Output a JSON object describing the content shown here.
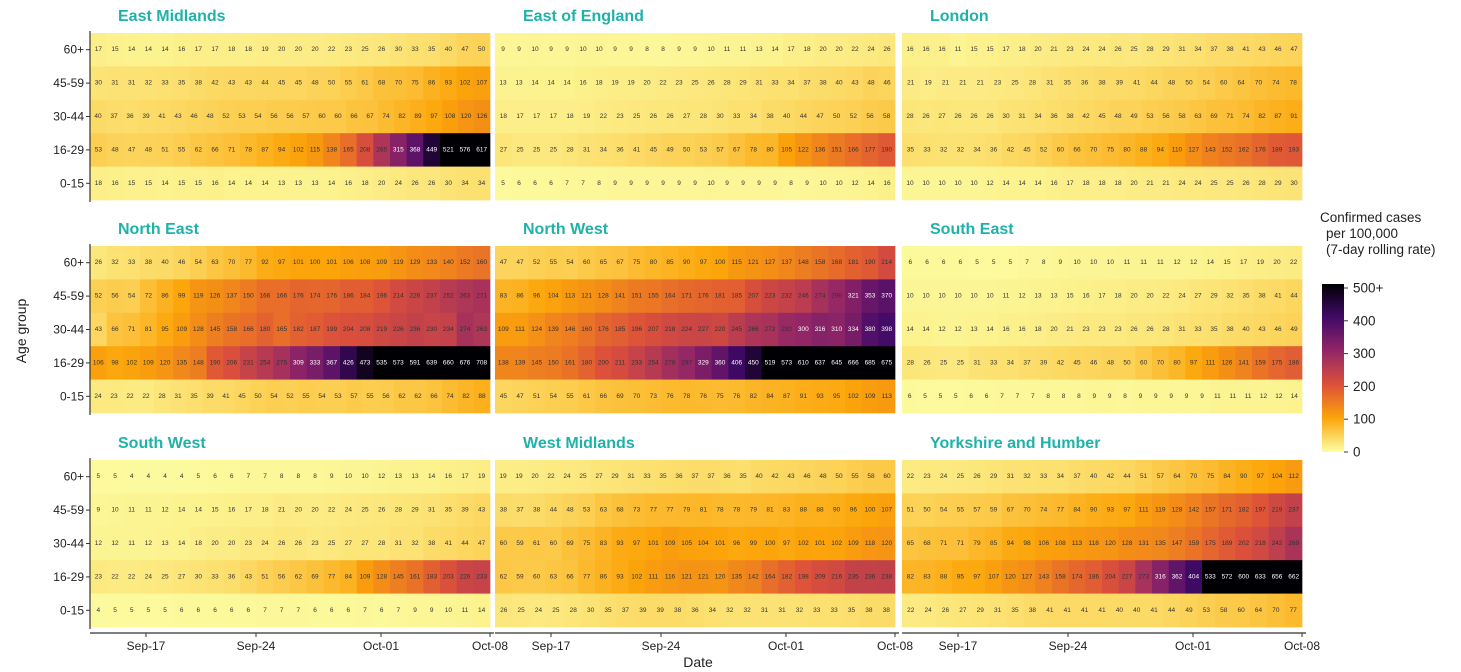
{
  "chart_data": {
    "type": "heatmap",
    "xlabel": "Date",
    "ylabel": "Age group",
    "age_groups": [
      "60+",
      "45-59",
      "30-44",
      "16-29",
      "0-15"
    ],
    "x_ticks": [
      "Sep-17",
      "Sep-24",
      "Oct-01",
      "Oct-08"
    ],
    "legend": {
      "title": [
        "Confirmed cases",
        "per 100,000",
        "(7-day rolling rate)"
      ],
      "labels": [
        "500+",
        "400",
        "300",
        "200",
        "100",
        "0"
      ]
    },
    "panels": [
      {
        "name": "East Midlands",
        "rows": [
          [
            17,
            15,
            14,
            14,
            14,
            16,
            17,
            17,
            18,
            18,
            19,
            20,
            20,
            20,
            22,
            23,
            25,
            26,
            30,
            33,
            35,
            40,
            47,
            50
          ],
          [
            30,
            31,
            31,
            32,
            33,
            35,
            38,
            42,
            43,
            43,
            44,
            45,
            45,
            48,
            50,
            55,
            61,
            68,
            70,
            75,
            86,
            93,
            102,
            107
          ],
          [
            40,
            37,
            36,
            39,
            41,
            43,
            46,
            48,
            52,
            53,
            54,
            56,
            56,
            57,
            60,
            60,
            66,
            67,
            74,
            82,
            89,
            97,
            108,
            120,
            126
          ],
          [
            53,
            48,
            47,
            48,
            51,
            55,
            62,
            66,
            71,
            78,
            87,
            94,
            102,
            115,
            138,
            165,
            208,
            265,
            315,
            368,
            449,
            521,
            576,
            617
          ],
          [
            18,
            16,
            15,
            15,
            14,
            15,
            15,
            16,
            14,
            14,
            14,
            13,
            13,
            13,
            14,
            16,
            18,
            20,
            24,
            26,
            26,
            30,
            34,
            34
          ]
        ]
      },
      {
        "name": "East of England",
        "rows": [
          [
            9,
            9,
            10,
            9,
            9,
            10,
            10,
            9,
            9,
            8,
            8,
            9,
            9,
            10,
            11,
            11,
            13,
            14,
            17,
            18,
            20,
            20,
            22,
            24,
            26
          ],
          [
            13,
            13,
            14,
            14,
            14,
            16,
            18,
            19,
            19,
            20,
            22,
            23,
            25,
            26,
            28,
            29,
            31,
            33,
            34,
            37,
            38,
            40,
            43,
            48,
            46
          ],
          [
            18,
            17,
            17,
            17,
            18,
            19,
            22,
            23,
            25,
            26,
            26,
            27,
            28,
            30,
            33,
            34,
            38,
            40,
            44,
            47,
            50,
            52,
            56,
            58
          ],
          [
            27,
            25,
            25,
            25,
            28,
            31,
            34,
            36,
            41,
            45,
            49,
            50,
            53,
            57,
            67,
            78,
            80,
            105,
            122,
            136,
            151,
            166,
            177,
            190
          ],
          [
            5,
            6,
            6,
            6,
            7,
            7,
            8,
            9,
            9,
            9,
            9,
            9,
            9,
            10,
            9,
            9,
            9,
            9,
            8,
            9,
            10,
            10,
            12,
            14,
            16
          ]
        ]
      },
      {
        "name": "London",
        "rows": [
          [
            16,
            16,
            16,
            11,
            15,
            15,
            17,
            18,
            20,
            21,
            23,
            24,
            24,
            26,
            25,
            28,
            29,
            31,
            34,
            37,
            38,
            41,
            43,
            46,
            47
          ],
          [
            21,
            19,
            21,
            21,
            21,
            23,
            25,
            28,
            31,
            35,
            36,
            38,
            39,
            41,
            44,
            48,
            50,
            54,
            60,
            64,
            70,
            74,
            78
          ],
          [
            28,
            26,
            27,
            26,
            26,
            26,
            30,
            31,
            34,
            36,
            38,
            42,
            45,
            48,
            49,
            53,
            56,
            58,
            63,
            69,
            71,
            74,
            82,
            87,
            91
          ],
          [
            35,
            33,
            32,
            32,
            34,
            36,
            42,
            45,
            52,
            60,
            66,
            70,
            75,
            80,
            88,
            94,
            110,
            127,
            143,
            152,
            162,
            176,
            189,
            193
          ],
          [
            10,
            10,
            10,
            10,
            10,
            12,
            14,
            14,
            14,
            16,
            17,
            18,
            18,
            18,
            20,
            21,
            21,
            24,
            24,
            25,
            25,
            26,
            28,
            29,
            30
          ]
        ]
      },
      {
        "name": "North East",
        "rows": [
          [
            26,
            32,
            33,
            38,
            40,
            46,
            54,
            63,
            70,
            77,
            92,
            97,
            101,
            100,
            101,
            106,
            108,
            109,
            119,
            129,
            133,
            140,
            152,
            160
          ],
          [
            52,
            56,
            54,
            72,
            86,
            99,
            119,
            126,
            137,
            150,
            166,
            166,
            176,
            174,
            176,
            186,
            184,
            196,
            214,
            226,
            237,
            252,
            263,
            271
          ],
          [
            43,
            66,
            71,
            81,
            95,
            109,
            128,
            145,
            158,
            166,
            180,
            165,
            182,
            187,
            199,
            204,
            208,
            219,
            226,
            236,
            230,
            234,
            274,
            263
          ],
          [
            106,
            98,
            102,
            109,
            120,
            135,
            148,
            190,
            206,
            231,
            254,
            275,
            309,
            333,
            367,
            426,
            473,
            535,
            573,
            591,
            639,
            660,
            676,
            708
          ],
          [
            24,
            23,
            22,
            22,
            28,
            31,
            35,
            39,
            41,
            45,
            50,
            54,
            52,
            55,
            54,
            53,
            57,
            55,
            56,
            62,
            62,
            66,
            74,
            82,
            88
          ]
        ]
      },
      {
        "name": "North West",
        "rows": [
          [
            47,
            47,
            52,
            55,
            54,
            60,
            65,
            67,
            75,
            80,
            85,
            90,
            97,
            100,
            115,
            121,
            127,
            137,
            148,
            158,
            168,
            181,
            190,
            214
          ],
          [
            83,
            86,
            96,
            104,
            113,
            121,
            128,
            141,
            151,
            155,
            164,
            171,
            176,
            181,
            185,
            207,
            223,
            232,
            246,
            274,
            296,
            321,
            353,
            370
          ],
          [
            109,
            111,
            124,
            139,
            146,
            160,
            176,
            185,
            196,
            207,
            218,
            224,
            227,
            220,
            245,
            266,
            272,
            292,
            300,
            316,
            310,
            334,
            380,
            398
          ],
          [
            138,
            139,
            145,
            150,
            161,
            180,
            200,
            211,
            233,
            254,
            278,
            297,
            329,
            360,
            406,
            450,
            519,
            573,
            610,
            637,
            645,
            666,
            685,
            675
          ],
          [
            45,
            47,
            51,
            54,
            55,
            61,
            66,
            69,
            70,
            73,
            76,
            78,
            76,
            75,
            76,
            82,
            84,
            87,
            91,
            93,
            95,
            102,
            109,
            113
          ]
        ]
      },
      {
        "name": "South East",
        "rows": [
          [
            6,
            6,
            6,
            6,
            5,
            5,
            5,
            7,
            8,
            9,
            10,
            10,
            10,
            11,
            11,
            11,
            12,
            12,
            14,
            15,
            17,
            19,
            20,
            22
          ],
          [
            10,
            10,
            10,
            10,
            10,
            10,
            11,
            12,
            13,
            13,
            15,
            16,
            17,
            18,
            20,
            20,
            22,
            24,
            27,
            29,
            32,
            35,
            38,
            41,
            44
          ],
          [
            14,
            14,
            12,
            12,
            13,
            14,
            16,
            16,
            18,
            20,
            21,
            23,
            23,
            23,
            26,
            26,
            28,
            31,
            33,
            35,
            38,
            40,
            43,
            46,
            49
          ],
          [
            28,
            26,
            25,
            25,
            31,
            33,
            34,
            37,
            39,
            42,
            45,
            46,
            48,
            50,
            60,
            70,
            80,
            97,
            111,
            126,
            141,
            159,
            175,
            186
          ],
          [
            6,
            5,
            5,
            5,
            6,
            6,
            7,
            7,
            7,
            8,
            8,
            8,
            9,
            9,
            8,
            9,
            9,
            9,
            9,
            9,
            11,
            11,
            11,
            12,
            12,
            14
          ]
        ]
      },
      {
        "name": "South West",
        "rows": [
          [
            5,
            5,
            4,
            4,
            4,
            4,
            5,
            6,
            6,
            7,
            7,
            8,
            8,
            8,
            9,
            10,
            10,
            12,
            13,
            13,
            14,
            16,
            17,
            19
          ],
          [
            9,
            10,
            11,
            11,
            12,
            14,
            14,
            15,
            16,
            17,
            18,
            21,
            20,
            20,
            22,
            24,
            25,
            26,
            28,
            29,
            31,
            35,
            39,
            43
          ],
          [
            12,
            12,
            11,
            12,
            13,
            14,
            18,
            20,
            20,
            23,
            24,
            26,
            26,
            23,
            25,
            27,
            27,
            28,
            31,
            32,
            38,
            41,
            44,
            47
          ],
          [
            23,
            22,
            22,
            24,
            25,
            27,
            30,
            33,
            36,
            43,
            51,
            56,
            62,
            69,
            77,
            84,
            109,
            128,
            145,
            161,
            183,
            203,
            226,
            233
          ],
          [
            4,
            5,
            5,
            5,
            5,
            6,
            6,
            6,
            6,
            6,
            7,
            7,
            7,
            6,
            6,
            6,
            7,
            6,
            7,
            9,
            9,
            10,
            11,
            14
          ]
        ]
      },
      {
        "name": "West Midlands",
        "rows": [
          [
            19,
            19,
            20,
            22,
            24,
            25,
            27,
            29,
            31,
            33,
            35,
            36,
            37,
            37,
            36,
            35,
            40,
            42,
            43,
            46,
            48,
            50,
            55,
            58,
            60
          ],
          [
            38,
            37,
            38,
            44,
            48,
            53,
            63,
            68,
            73,
            77,
            77,
            79,
            81,
            78,
            78,
            79,
            81,
            83,
            88,
            88,
            90,
            96,
            100,
            107
          ],
          [
            60,
            59,
            61,
            60,
            69,
            75,
            83,
            93,
            97,
            101,
            109,
            105,
            104,
            101,
            96,
            99,
            100,
            97,
            102,
            101,
            102,
            109,
            118,
            120
          ],
          [
            62,
            59,
            60,
            63,
            66,
            77,
            86,
            93,
            102,
            111,
            116,
            121,
            121,
            120,
            135,
            142,
            164,
            182,
            198,
            209,
            216,
            235,
            236,
            238
          ],
          [
            26,
            25,
            24,
            25,
            28,
            30,
            35,
            37,
            39,
            39,
            38,
            36,
            34,
            32,
            32,
            31,
            31,
            32,
            33,
            33,
            35,
            38,
            38
          ]
        ]
      },
      {
        "name": "Yorkshire and Humber",
        "rows": [
          [
            22,
            23,
            24,
            25,
            26,
            29,
            31,
            32,
            33,
            34,
            37,
            40,
            42,
            44,
            51,
            57,
            64,
            70,
            75,
            84,
            90,
            97,
            104,
            112
          ],
          [
            51,
            50,
            54,
            55,
            57,
            59,
            67,
            70,
            74,
            77,
            84,
            90,
            93,
            97,
            111,
            119,
            128,
            142,
            157,
            171,
            182,
            197,
            219,
            237
          ],
          [
            65,
            68,
            71,
            71,
            79,
            85,
            94,
            98,
            106,
            108,
            113,
            118,
            120,
            128,
            131,
            135,
            147,
            159,
            175,
            189,
            202,
            218,
            242,
            269
          ],
          [
            82,
            83,
            88,
            95,
            97,
            107,
            120,
            127,
            143,
            158,
            174,
            186,
            204,
            227,
            273,
            316,
            362,
            404,
            533,
            572,
            600,
            633,
            656,
            662
          ],
          [
            22,
            24,
            26,
            27,
            29,
            31,
            35,
            38,
            41,
            41,
            41,
            41,
            40,
            40,
            41,
            44,
            49,
            53,
            58,
            60,
            64,
            70,
            77
          ]
        ]
      }
    ]
  }
}
